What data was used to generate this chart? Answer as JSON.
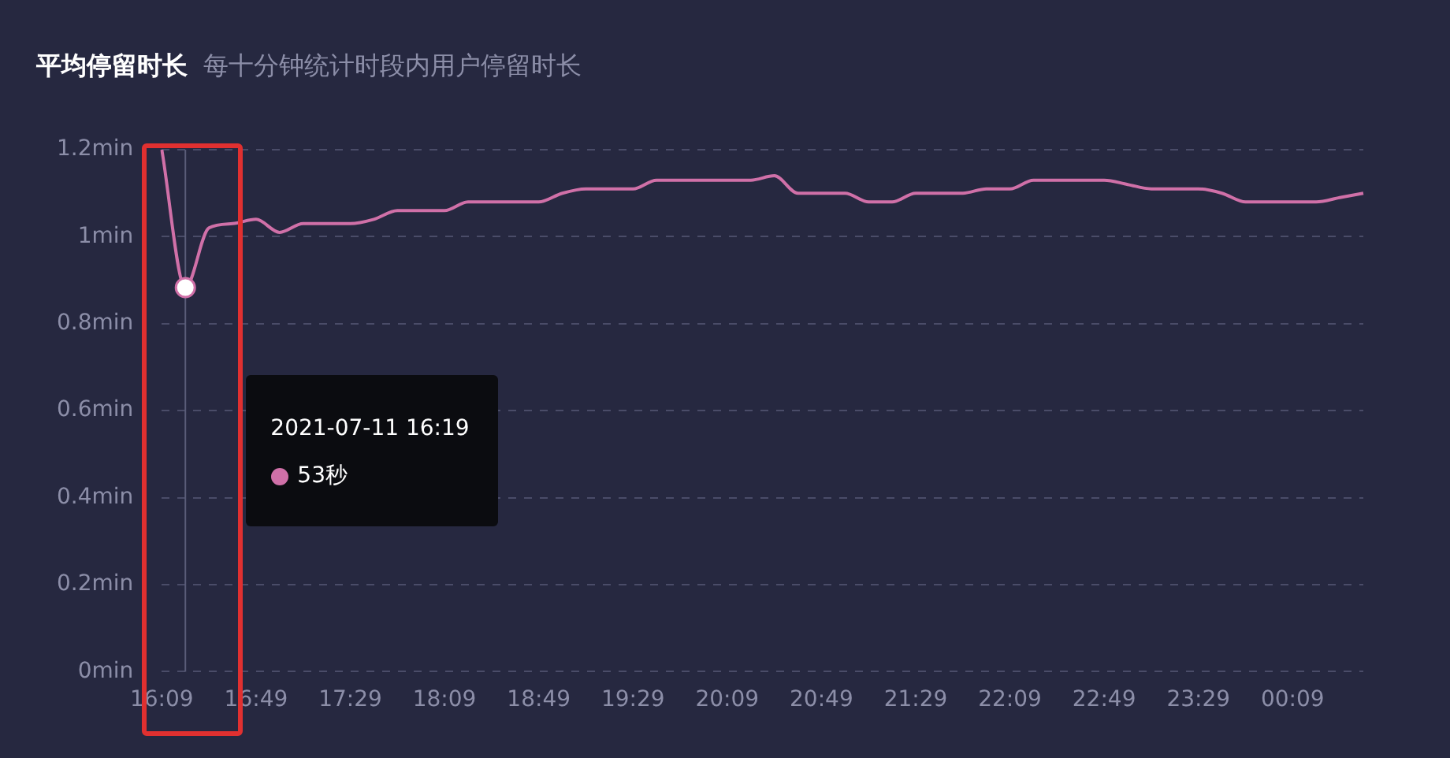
{
  "chart_data": {
    "type": "line",
    "title": "平均停留时长",
    "subtitle": "每十分钟统计时段内用户停留时长",
    "categories": [
      "16:09",
      null,
      null,
      null,
      "16:49",
      null,
      null,
      null,
      "17:29",
      null,
      null,
      null,
      "18:09",
      null,
      null,
      null,
      "18:49",
      null,
      null,
      null,
      "19:29",
      null,
      null,
      null,
      "20:09",
      null,
      null,
      null,
      "20:49",
      null,
      null,
      null,
      "21:29",
      null,
      null,
      null,
      "22:09",
      null,
      null,
      null,
      "22:49",
      null,
      null,
      null,
      "23:29",
      null,
      null,
      null,
      "00:09",
      null,
      null,
      null
    ],
    "series": [
      {
        "color": "#d070a8",
        "values": [
          1.2,
          0.883,
          1.02,
          1.03,
          1.04,
          1.01,
          1.03,
          1.03,
          1.03,
          1.04,
          1.06,
          1.06,
          1.06,
          1.08,
          1.08,
          1.08,
          1.08,
          1.1,
          1.11,
          1.11,
          1.11,
          1.13,
          1.13,
          1.13,
          1.13,
          1.13,
          1.14,
          1.1,
          1.1,
          1.1,
          1.08,
          1.08,
          1.1,
          1.1,
          1.1,
          1.11,
          1.11,
          1.13,
          1.13,
          1.13,
          1.13,
          1.12,
          1.11,
          1.11,
          1.11,
          1.1,
          1.08,
          1.08,
          1.08,
          1.08,
          1.09,
          1.1
        ]
      }
    ],
    "ylim": [
      0,
      1.2
    ],
    "yticks": [
      {
        "value": 0,
        "label": "0min"
      },
      {
        "value": 0.2,
        "label": "0.2min"
      },
      {
        "value": 0.4,
        "label": "0.4min"
      },
      {
        "value": 0.6,
        "label": "0.6min"
      },
      {
        "value": 0.8,
        "label": "0.8min"
      },
      {
        "value": 1,
        "label": "1min"
      },
      {
        "value": 1.2,
        "label": "1.2min"
      }
    ],
    "grid": "y",
    "marker": "none",
    "line_style": "solid",
    "legend": false,
    "annotations": [
      "2021-07-11 16:19",
      "53秒"
    ]
  }
}
